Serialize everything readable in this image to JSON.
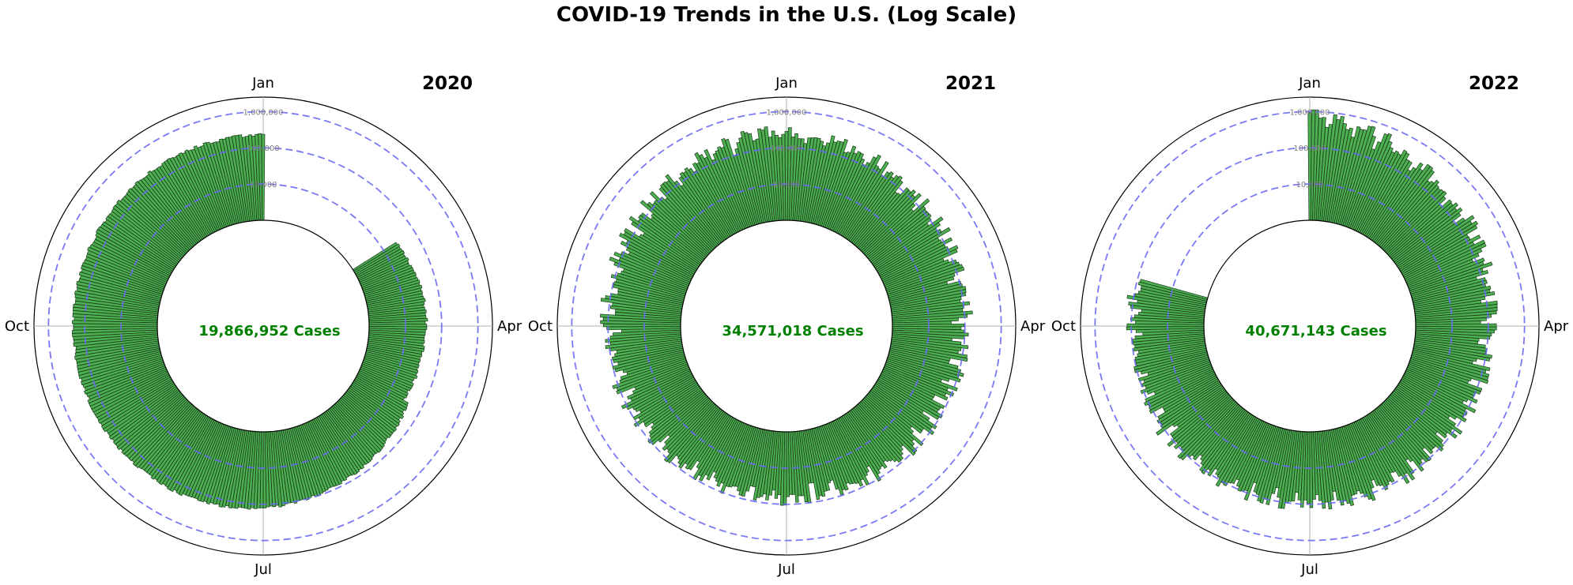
{
  "figure": {
    "title": "COVID-19 Trends in the U.S. (Log Scale)"
  },
  "colors": {
    "bar_fill": "#4caf50",
    "bar_edge": "#1b3a1b",
    "ring_dash": "#6a6af5",
    "total_text": "#008000",
    "grid": "#b0b0b0"
  },
  "chart_data": [
    {
      "type": "bar",
      "layout": "polar",
      "title": "2020",
      "total_label": "19,866,952 Cases",
      "month_labels": [
        "Jan",
        "Apr",
        "Jul",
        "Oct"
      ],
      "radial_scale": "log",
      "reference_lines": [
        10000,
        100000,
        1000000
      ],
      "reference_labels": [
        "10,000",
        "100,000",
        "1,000,000"
      ],
      "x_unit": "day of year",
      "series": [
        {
          "segments": [
            {
              "start_day": 60,
              "end_day": 120,
              "start_value": 25000,
              "peak_value": 38000,
              "end_value": 30000
            },
            {
              "start_day": 121,
              "end_day": 366,
              "start_value": 40000,
              "peak_value": 200000,
              "end_value": 230000
            }
          ]
        }
      ]
    },
    {
      "type": "bar",
      "layout": "polar",
      "title": "2021",
      "total_label": "34,571,018 Cases",
      "month_labels": [
        "Jan",
        "Apr",
        "Jul",
        "Oct"
      ],
      "radial_scale": "log",
      "reference_lines": [
        10000,
        100000,
        1000000
      ],
      "reference_labels": [
        "10,000",
        "100,000",
        "1,000,000"
      ],
      "x_unit": "day of year",
      "series": [
        {
          "segments": [
            {
              "start_day": 1,
              "end_day": 365,
              "start_value": 250000,
              "low_value": 60000,
              "end_value": 300000
            }
          ]
        }
      ]
    },
    {
      "type": "bar",
      "layout": "polar",
      "title": "2022",
      "total_label": "40,671,143 Cases",
      "month_labels": [
        "Jan",
        "Apr",
        "Jul",
        "Oct"
      ],
      "radial_scale": "log",
      "reference_lines": [
        10000,
        100000,
        1000000
      ],
      "reference_labels": [
        "10,000",
        "100,000",
        "1,000,000"
      ],
      "x_unit": "day of year",
      "series": [
        {
          "segments": [
            {
              "start_day": 1,
              "end_day": 290,
              "start_value": 800000,
              "low_value": 90000,
              "end_value": 100000
            }
          ]
        }
      ]
    }
  ]
}
